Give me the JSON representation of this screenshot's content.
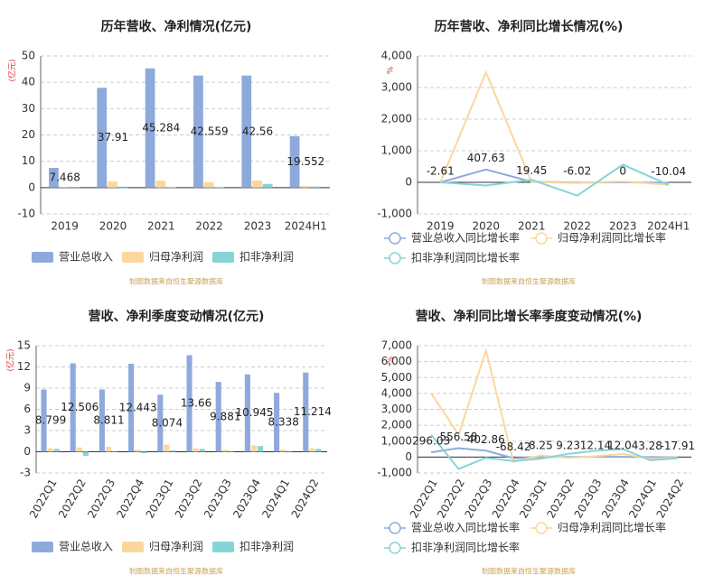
{
  "chart_data": [
    {
      "type": "bar",
      "title": "历年营收、净利情况(亿元)",
      "y_label": "(亿元)",
      "source": "制图数据来自恒生聚源数据库",
      "categories": [
        "2019",
        "2020",
        "2021",
        "2022",
        "2023",
        "2024H1"
      ],
      "series": [
        {
          "name": "营业总收入",
          "color": "#8eaadc",
          "values": [
            7.468,
            37.91,
            45.284,
            42.559,
            42.56,
            19.552
          ]
        },
        {
          "name": "归母净利润",
          "color": "#fbd79e",
          "values": [
            0.3,
            2.3,
            2.6,
            2.1,
            2.7,
            0.6
          ]
        },
        {
          "name": "扣非净利润",
          "color": "#86d4d6",
          "values": [
            0.2,
            -0.3,
            0.1,
            0.1,
            1.4,
            0.4
          ]
        }
      ],
      "ylim": [
        -10,
        50
      ],
      "yticks": [
        -10,
        0,
        10,
        20,
        30,
        40,
        50
      ],
      "grid": true,
      "legend": "bottom"
    },
    {
      "type": "line",
      "title": "历年营收、净利同比增长情况(%)",
      "y_label": "%",
      "source": "制图数据来自恒生聚源数据库",
      "categories": [
        "2019",
        "2020",
        "2021",
        "2022",
        "2023",
        "2024H1"
      ],
      "series": [
        {
          "name": "营业总收入同比增长率",
          "color": "#8eaadc",
          "values": [
            -2.61,
            407.63,
            19.45,
            -6.02,
            0,
            -10.04
          ]
        },
        {
          "name": "归母净利润同比增长率",
          "color": "#fbd79e",
          "values": [
            0,
            3480,
            10,
            -20,
            30,
            -80
          ]
        },
        {
          "name": "扣非净利润同比增长率",
          "color": "#86d4d6",
          "values": [
            0,
            -100,
            80,
            -420,
            560,
            -80
          ]
        }
      ],
      "ylim": [
        -1000,
        4000
      ],
      "yticks": [
        {
          "value": -1000,
          "label": "-1,000"
        },
        0,
        {
          "value": 1000,
          "label": "1,000"
        },
        {
          "value": 2000,
          "label": "2,000"
        },
        {
          "value": 3000,
          "label": "3,000"
        },
        {
          "value": 4000,
          "label": "4,000"
        }
      ],
      "grid": true,
      "legend": "bottom"
    },
    {
      "type": "bar",
      "title": "营收、净利季度变动情况(亿元)",
      "y_label": "(亿元)",
      "source": "制图数据来自恒生聚源数据库",
      "categories": [
        "2022Q1",
        "2022Q2",
        "2022Q3",
        "2022Q4",
        "2023Q1",
        "2023Q2",
        "2023Q3",
        "2023Q4",
        "2024Q1",
        "2024Q2"
      ],
      "series": [
        {
          "name": "营业总收入",
          "color": "#8eaadc",
          "values": [
            8.799,
            12.506,
            8.811,
            12.443,
            8.074,
            13.66,
            9.881,
            10.945,
            8.338,
            11.214
          ]
        },
        {
          "name": "归母净利润",
          "color": "#fbd79e",
          "values": [
            0.5,
            0.6,
            0.7,
            0.3,
            1.0,
            0.5,
            0.3,
            0.9,
            0.3,
            0.5
          ]
        },
        {
          "name": "扣非净利润",
          "color": "#86d4d6",
          "values": [
            0.4,
            -0.6,
            0.1,
            -0.2,
            0.2,
            0.4,
            0.1,
            0.8,
            0.1,
            0.4
          ]
        }
      ],
      "ylim": [
        -3,
        15
      ],
      "yticks": [
        -3,
        0,
        3,
        6,
        9,
        12,
        15
      ],
      "grid": true,
      "legend": "bottom"
    },
    {
      "type": "line",
      "title": "营收、净利同比增长率季度变动情况(%)",
      "y_label": "%",
      "source": "制图数据来自恒生聚源数据库",
      "categories": [
        "2022Q1",
        "2022Q2",
        "2022Q3",
        "2022Q4",
        "2023Q1",
        "2023Q2",
        "2023Q3",
        "2023Q4",
        "2024Q1",
        "2024Q2"
      ],
      "series": [
        {
          "name": "营业总收入同比增长率",
          "color": "#8eaadc",
          "values": [
            296.03,
            556.58,
            402.86,
            -68.42,
            8.25,
            9.23,
            12.14,
            12.04,
            3.28,
            -17.91
          ]
        },
        {
          "name": "归母净利润同比增长率",
          "color": "#fbd79e",
          "values": [
            4000,
            1400,
            6700,
            -300,
            100,
            -50,
            50,
            200,
            -100,
            -50
          ]
        },
        {
          "name": "扣非净利润同比增长率",
          "color": "#86d4d6",
          "values": [
            1400,
            -750,
            -50,
            -250,
            -100,
            200,
            400,
            500,
            -200,
            -80
          ]
        }
      ],
      "ylim": [
        -1000,
        7000
      ],
      "yticks": [
        {
          "value": -1000,
          "label": "-1,000"
        },
        0,
        {
          "value": 1000,
          "label": "1,000"
        },
        {
          "value": 2000,
          "label": "2,000"
        },
        {
          "value": 3000,
          "label": "3,000"
        },
        {
          "value": 4000,
          "label": "4,000"
        },
        {
          "value": 5000,
          "label": "5,000"
        },
        {
          "value": 6000,
          "label": "6,000"
        },
        {
          "value": 7000,
          "label": "7,000"
        }
      ],
      "grid": true,
      "legend": "bottom"
    }
  ]
}
